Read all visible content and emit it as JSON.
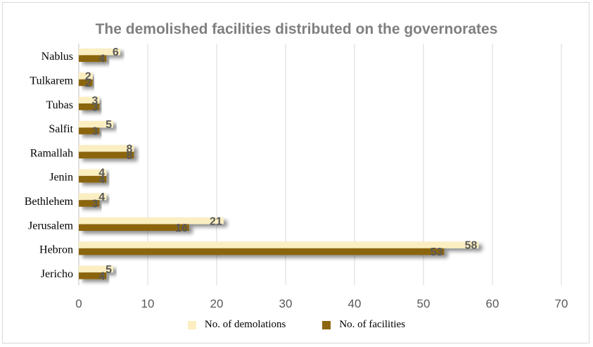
{
  "chart_data": {
    "type": "bar",
    "orientation": "horizontal",
    "title": "The demolished facilities distributed on the governorates",
    "categories": [
      "Nablus",
      "Tulkarem",
      "Tubas",
      "Salfit",
      "Ramallah",
      "Jenin",
      "Bethlehem",
      "Jerusalem",
      "Hebron",
      "Jericho"
    ],
    "series": [
      {
        "name": "No. of demolations",
        "values": [
          6,
          2,
          3,
          5,
          8,
          4,
          4,
          21,
          58,
          5
        ],
        "color": "#fbeec1"
      },
      {
        "name": "No. of facilities",
        "values": [
          4,
          2,
          3,
          3,
          8,
          4,
          3,
          16,
          53,
          4
        ],
        "color": "#8b6510"
      }
    ],
    "xlim": [
      0,
      70
    ],
    "xticks": [
      0,
      10,
      20,
      30,
      40,
      50,
      60,
      70
    ],
    "grid": true,
    "legend_position": "bottom",
    "data_labels": true
  }
}
